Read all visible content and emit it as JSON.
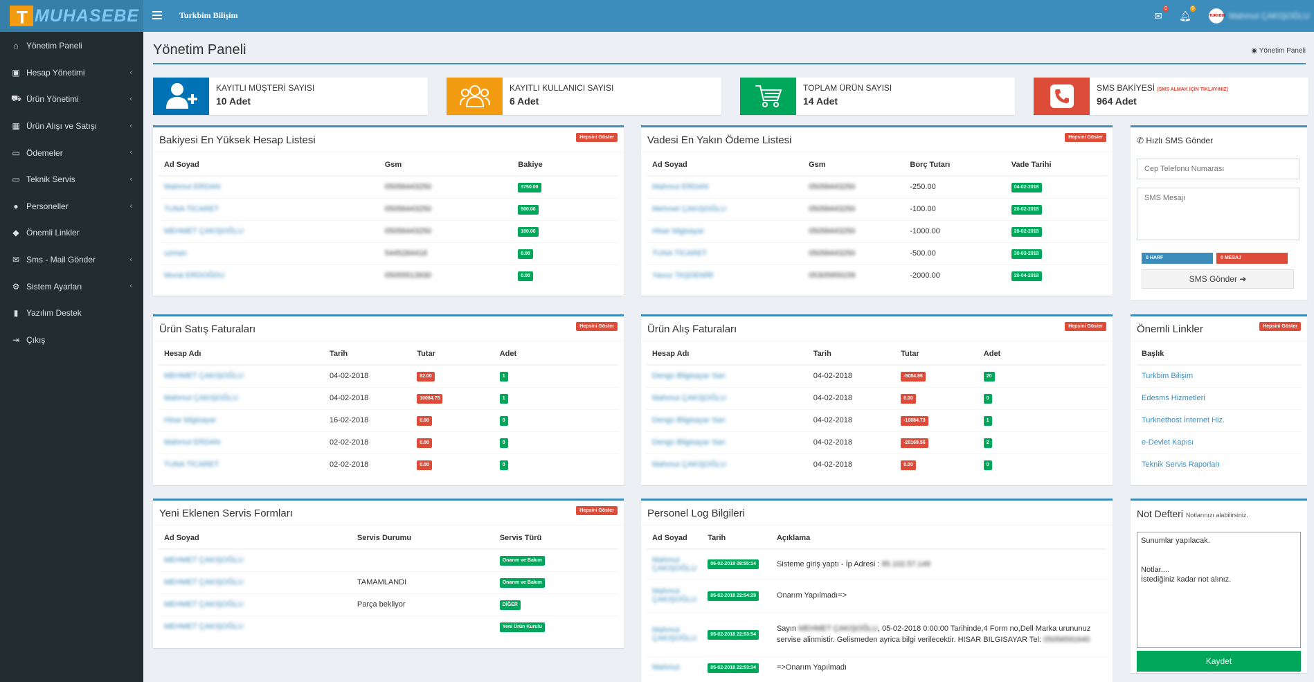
{
  "header": {
    "logo_letter": "T",
    "logo_text": "MUHASEBE",
    "brand": "Turkbim Bilişim",
    "mail_badge": "0",
    "bell_badge": "0",
    "avatar_text": "TURKBIM",
    "user_name": "Mahmut ÇAKIŞOĞLU"
  },
  "sidebar": {
    "items": [
      {
        "label": "Yönetim Paneli",
        "icon": "home-icon"
      },
      {
        "label": "Hesap Yönetimi",
        "icon": "money-icon"
      },
      {
        "label": "Ürün Yönetimi",
        "icon": "cart-icon"
      },
      {
        "label": "Ürün Alışı ve Satışı",
        "icon": "grid-icon"
      },
      {
        "label": "Ödemeler",
        "icon": "credit-card-icon"
      },
      {
        "label": "Teknik Servis",
        "icon": "laptop-icon"
      },
      {
        "label": "Personeller",
        "icon": "user-icon"
      },
      {
        "label": "Önemli Linkler",
        "icon": "tags-icon"
      },
      {
        "label": "Sms - Mail Gönder",
        "icon": "envelope-icon"
      },
      {
        "label": "Sistem Ayarları",
        "icon": "gear-icon"
      },
      {
        "label": "Yazılım Destek",
        "icon": "bookmark-icon"
      },
      {
        "label": "Çıkış",
        "icon": "sign-out-icon"
      }
    ]
  },
  "page": {
    "title": "Yönetim Paneli",
    "breadcrumb": "Yönetim Paneli"
  },
  "info_boxes": [
    {
      "label": "KAYITLI MÜŞTERİ SAYISI",
      "value": "10 Adet",
      "color": "#0073b7",
      "icon": "user-plus-icon"
    },
    {
      "label": "KAYITLI KULLANICI SAYISI",
      "value": "6 Adet",
      "color": "#f39c12",
      "icon": "users-icon"
    },
    {
      "label": "TOPLAM ÜRÜN SAYISI",
      "value": "14 Adet",
      "color": "#00a65a",
      "icon": "cart-icon"
    },
    {
      "label": "SMS BAKİYESİ",
      "note": "(SMS ALMAK İÇİN TIKLAYINIZ)",
      "value": "964 Adet",
      "color": "#dd4b39",
      "icon": "phone-icon"
    }
  ],
  "show_all": "Hepsini Göster",
  "balance_list": {
    "title": "Bakiyesi En Yüksek Hesap Listesi",
    "headers": [
      "Ad Soyad",
      "Gsm",
      "Bakiye"
    ],
    "rows": [
      [
        "Mahmut ERDAN",
        "05056443250",
        "3750.00"
      ],
      [
        "TUNA TİCARET",
        "05056443250",
        "500.00"
      ],
      [
        "MEHMET ÇAKIŞOĞLU",
        "05056443250",
        "100.00"
      ],
      [
        "uzman",
        "5445284418",
        "0.00"
      ],
      [
        "Murat ERDOĞDU",
        "05055513930",
        "0.00"
      ]
    ]
  },
  "payment_list": {
    "title": "Vadesi En Yakın Ödeme Listesi",
    "headers": [
      "Ad Soyad",
      "Gsm",
      "Borç Tutarı",
      "Vade Tarihi"
    ],
    "rows": [
      [
        "Mahmut ERDAN",
        "05056443250",
        "-250.00",
        "04-02-2018"
      ],
      [
        "Mehmet ÇAKIŞOĞLU",
        "05056443250",
        "-100.00",
        "20-02-2018"
      ],
      [
        "Hisar bilgisayar",
        "05056443250",
        "-1000.00",
        "28-02-2018"
      ],
      [
        "TUNA TİCARET",
        "05056443250",
        "-500.00",
        "30-03-2018"
      ],
      [
        "Yavuz TAŞDEMİR",
        "05305959159",
        "-2000.00",
        "20-04-2018"
      ]
    ]
  },
  "quick_sms": {
    "title": "Hızlı SMS Gönder",
    "phone_placeholder": "Cep Telefonu Numarası",
    "message_placeholder": "SMS Mesajı",
    "chars": "0 HARF",
    "msgs": "0 MESAJ",
    "send": "SMS Gönder"
  },
  "sales_invoices": {
    "title": "Ürün Satış Faturaları",
    "headers": [
      "Hesap Adı",
      "Tarih",
      "Tutar",
      "Adet"
    ],
    "rows": [
      [
        "MEHMET ÇAKIŞOĞLU",
        "04-02-2018",
        "82.00",
        "1"
      ],
      [
        "Mahmut ÇAKIŞOĞLU",
        "04-02-2018",
        "10084.75",
        "1"
      ],
      [
        "Hisar bilgisayar",
        "16-02-2018",
        "0.00",
        "0"
      ],
      [
        "Mahmut ERDAN",
        "02-02-2018",
        "0.00",
        "0"
      ],
      [
        "TUNA TİCARET",
        "02-02-2018",
        "0.00",
        "0"
      ]
    ]
  },
  "purchase_invoices": {
    "title": "Ürün Alış Faturaları",
    "headers": [
      "Hesap Adı",
      "Tarih",
      "Tutar",
      "Adet"
    ],
    "rows": [
      [
        "Dengo Bilgisayar San",
        "04-02-2018",
        "-5084.86",
        "20"
      ],
      [
        "Mahmut ÇAKIŞOĞLU",
        "04-02-2018",
        "0.00",
        "0"
      ],
      [
        "Dengo Bilgisayar San",
        "04-02-2018",
        "-10084.73",
        "1"
      ],
      [
        "Dengo Bilgisayar San",
        "04-02-2018",
        "-20169.56",
        "2"
      ],
      [
        "Mahmut ÇAKIŞOĞLU",
        "04-02-2018",
        "0.00",
        "0"
      ]
    ]
  },
  "links": {
    "title": "Önemli Linkler",
    "header": "Başlık",
    "items": [
      "Turkbim Bilişim",
      "Edesms Hizmetleri",
      "Turknethost İnternet Hiz.",
      "e-Devlet Kapısı",
      "Teknik Servis Raporları"
    ]
  },
  "service_forms": {
    "title": "Yeni Eklenen Servis Formları",
    "headers": [
      "Ad Soyad",
      "Servis Durumu",
      "Servis Türü"
    ],
    "rows": [
      [
        "MEHMET ÇAKIŞOĞLU",
        "",
        "Onarım ve Bakım"
      ],
      [
        "MEHMET ÇAKIŞOĞLU",
        "TAMAMLANDI",
        "Onarım ve Bakım"
      ],
      [
        "MEHMET ÇAKIŞOĞLU",
        "Parça bekliyor",
        "DİĞER"
      ],
      [
        "MEHMET ÇAKIŞOĞLU",
        "",
        "Yeni Ürün Kurulu"
      ]
    ]
  },
  "staff_log": {
    "title": "Personel Log Bilgileri",
    "headers": [
      "Ad Soyad",
      "Tarih",
      "Açıklama"
    ],
    "rows": [
      {
        "name": "Mahmut ÇAKIŞOĞLU",
        "date": "06-02-2018 08:55:14",
        "text": "Sisteme giriş yaptı - İp Adresi :",
        "blur": "85.102.57.149"
      },
      {
        "name": "Mahmut ÇAKIŞOĞLU",
        "date": "05-02-2018 22:54:29",
        "text": "Onarım Yapılmadı=>",
        "blur": ""
      },
      {
        "name": "Mahmut ÇAKIŞOĞLU",
        "date": "05-02-2018 22:53:54",
        "pre": "Sayın",
        "blur": "MEHMET ÇAKIŞOĞLU",
        "text": ", 05-02-2018 0:00:00 Tarihinde,4 Form no,Dell Marka urununuz servise alinmistir. Gelismeden ayrica bilgi verilecektir. HISAR BILGISAYAR Tel:",
        "blur2": "05056591640"
      },
      {
        "name": "Mahmut",
        "date": "05-02-2018 22:53:34",
        "text": "=>Onarım Yapılmadı",
        "blur": ""
      }
    ]
  },
  "notes": {
    "title": "Not Defteri",
    "subtitle": "Notlarınızı alabilirsiniz.",
    "content": "Sunumlar yapılacak.\n\n\nNotlar....\nİstediğiniz kadar not alınız.",
    "save": "Kaydet"
  },
  "colors": {
    "primary": "#3c8dbc",
    "sidebar": "#222d32",
    "success": "#00a65a",
    "danger": "#dd4b39",
    "warning": "#f39c12"
  }
}
